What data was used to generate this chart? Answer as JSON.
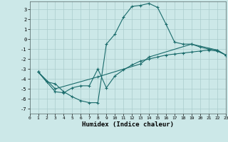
{
  "xlabel": "Humidex (Indice chaleur)",
  "bg_color": "#cce8e8",
  "grid_color": "#aacccc",
  "line_color": "#1a6b6b",
  "xlim": [
    0,
    23
  ],
  "ylim": [
    -7.5,
    3.8
  ],
  "xticks": [
    0,
    1,
    2,
    3,
    4,
    5,
    6,
    7,
    8,
    9,
    10,
    11,
    12,
    13,
    14,
    15,
    16,
    17,
    18,
    19,
    20,
    21,
    22,
    23
  ],
  "yticks": [
    -7,
    -6,
    -5,
    -4,
    -3,
    -2,
    -1,
    0,
    1,
    2,
    3
  ],
  "curve1_x": [
    1,
    2,
    3,
    4,
    5,
    6,
    7,
    8,
    9,
    10,
    11,
    12,
    13,
    14,
    15,
    16,
    17,
    18,
    19,
    20,
    21,
    22,
    23
  ],
  "curve1_y": [
    -3.3,
    -4.3,
    -4.5,
    -5.3,
    -5.8,
    -6.2,
    -6.4,
    -6.4,
    -0.5,
    0.5,
    2.2,
    3.3,
    3.4,
    3.6,
    3.2,
    1.5,
    -0.3,
    -0.5,
    -0.5,
    -0.8,
    -1.0,
    -1.1,
    -1.6
  ],
  "curve2_x": [
    1,
    2,
    3,
    4,
    5,
    6,
    7,
    8,
    9,
    10,
    11,
    12,
    13,
    14,
    15,
    16,
    17,
    18,
    19,
    20,
    21,
    22,
    23
  ],
  "curve2_y": [
    -3.3,
    -4.3,
    -5.3,
    -5.4,
    -4.9,
    -4.7,
    -4.7,
    -3.0,
    -4.9,
    -3.7,
    -3.1,
    -2.6,
    -2.2,
    -2.0,
    -1.8,
    -1.6,
    -1.5,
    -1.4,
    -1.3,
    -1.2,
    -1.1,
    -1.2,
    -1.6
  ],
  "curve3_x": [
    1,
    3,
    8,
    13,
    14,
    19,
    22,
    23
  ],
  "curve3_y": [
    -3.3,
    -5.0,
    -3.8,
    -2.5,
    -1.8,
    -0.5,
    -1.1,
    -1.6
  ]
}
